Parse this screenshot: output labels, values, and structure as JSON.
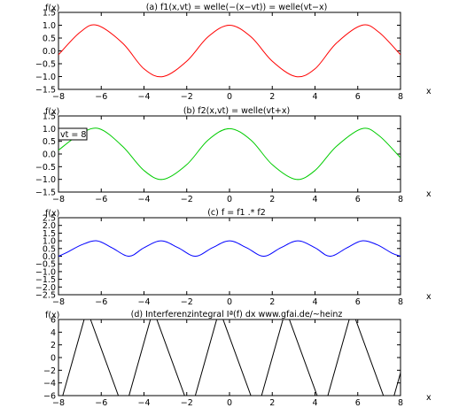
{
  "chart_data": [
    {
      "type": "line",
      "title": "(a) f1(x,vt) = welle(−(x−vt)) = welle(vt−x)",
      "ylabel": "f(x)",
      "xlabel": "x",
      "xlim": [
        -8,
        8
      ],
      "ylim": [
        -1.5,
        1.5
      ],
      "xticks": [
        -8,
        -6,
        -4,
        -2,
        0,
        2,
        4,
        6,
        8
      ],
      "yticks": [
        "-1.5",
        "-1.0",
        "-0.5",
        "0.0",
        "0.5",
        "1.0",
        "1.5"
      ],
      "series": [
        {
          "color": "#ff0000",
          "x": [
            -8,
            -7,
            -6.2,
            -5,
            -4,
            -3.1,
            -2,
            -1,
            0,
            1,
            2,
            3.1,
            4,
            5,
            6.2,
            7,
            8
          ],
          "y": [
            -0.15,
            0.72,
            1.0,
            0.3,
            -0.7,
            -1.0,
            -0.4,
            0.55,
            1.0,
            0.55,
            -0.4,
            -1.0,
            -0.7,
            0.3,
            1.0,
            0.72,
            -0.15
          ]
        }
      ]
    },
    {
      "type": "line",
      "title": "(b) f2(x,vt) = welle(vt+x)",
      "ylabel": "f(x)",
      "xlabel": "x",
      "annotation": "vt = 8",
      "xlim": [
        -8,
        8
      ],
      "ylim": [
        -1.5,
        1.5
      ],
      "xticks": [
        -8,
        -6,
        -4,
        -2,
        0,
        2,
        4,
        6,
        8
      ],
      "yticks": [
        "-1.5",
        "-1.0",
        "-0.5",
        "0.0",
        "0.5",
        "1.0",
        "1.5"
      ],
      "series": [
        {
          "color": "#00cc00",
          "x": [
            -8,
            -7,
            -6.1,
            -5,
            -4,
            -3.1,
            -2,
            -1,
            0,
            1,
            2,
            3.1,
            4,
            5,
            6.2,
            7,
            8
          ],
          "y": [
            0.15,
            0.78,
            1.0,
            0.3,
            -0.65,
            -1.0,
            -0.42,
            0.55,
            1.0,
            0.55,
            -0.42,
            -1.0,
            -0.65,
            0.3,
            1.0,
            0.72,
            -0.15
          ]
        }
      ]
    },
    {
      "type": "line",
      "title": "(c) f = f1 .* f2",
      "ylabel": "f(x)",
      "xlabel": "x",
      "xlim": [
        -8,
        8
      ],
      "ylim": [
        -2.5,
        2.5
      ],
      "xticks": [
        -8,
        -6,
        -4,
        -2,
        0,
        2,
        4,
        6,
        8
      ],
      "yticks": [
        "-2.5",
        "-2.0",
        "-1.5",
        "-1.0",
        "-0.5",
        "0.0",
        "0.5",
        "1.0",
        "1.5",
        "2.0",
        "2.5"
      ],
      "series": [
        {
          "color": "#0000ff",
          "x": [
            -8,
            -7.6,
            -6.9,
            -6.2,
            -5.5,
            -4.7,
            -4.0,
            -3.2,
            -2.4,
            -1.6,
            -0.8,
            0,
            0.8,
            1.6,
            2.4,
            3.2,
            4.0,
            4.7,
            5.5,
            6.2,
            6.9,
            7.6,
            8
          ],
          "y": [
            0.0,
            0.25,
            0.75,
            1.0,
            0.55,
            0.0,
            0.55,
            1.0,
            0.55,
            0.0,
            0.55,
            1.0,
            0.55,
            0.0,
            0.55,
            1.0,
            0.55,
            0.0,
            0.55,
            1.0,
            0.75,
            0.2,
            0.0
          ]
        }
      ]
    },
    {
      "type": "line",
      "title": "(d) Interferenzintegral Iª(f) dx  www.gfai.de/~heinz",
      "ylabel": "f(x)",
      "xlabel": "x",
      "xlim": [
        -8,
        8
      ],
      "ylim": [
        -6,
        6
      ],
      "xticks": [
        -8,
        -6,
        -4,
        -2,
        0,
        2,
        4,
        6,
        8
      ],
      "yticks": [
        "-6",
        "-4",
        "-2",
        "0",
        "2",
        "4",
        "6"
      ],
      "segments": [
        {
          "x": [
            -7.8,
            -6.8
          ],
          "y": [
            -6,
            6
          ]
        },
        {
          "x": [
            -6.5,
            -5.2
          ],
          "y": [
            6,
            -6
          ]
        },
        {
          "x": [
            -4.7,
            -3.7
          ],
          "y": [
            -6,
            6
          ]
        },
        {
          "x": [
            -3.4,
            -2.1
          ],
          "y": [
            6,
            -6
          ]
        },
        {
          "x": [
            -1.6,
            -0.6
          ],
          "y": [
            -6,
            6
          ]
        },
        {
          "x": [
            -0.3,
            1.0
          ],
          "y": [
            6,
            -6
          ]
        },
        {
          "x": [
            1.5,
            2.5
          ],
          "y": [
            -6,
            6
          ]
        },
        {
          "x": [
            2.8,
            4.1
          ],
          "y": [
            6,
            -6
          ]
        },
        {
          "x": [
            4.6,
            5.6
          ],
          "y": [
            -6,
            6
          ]
        },
        {
          "x": [
            5.9,
            7.2
          ],
          "y": [
            6,
            -6
          ]
        },
        {
          "x": [
            7.7,
            8.0
          ],
          "y": [
            -6,
            -2.4
          ]
        }
      ]
    }
  ]
}
